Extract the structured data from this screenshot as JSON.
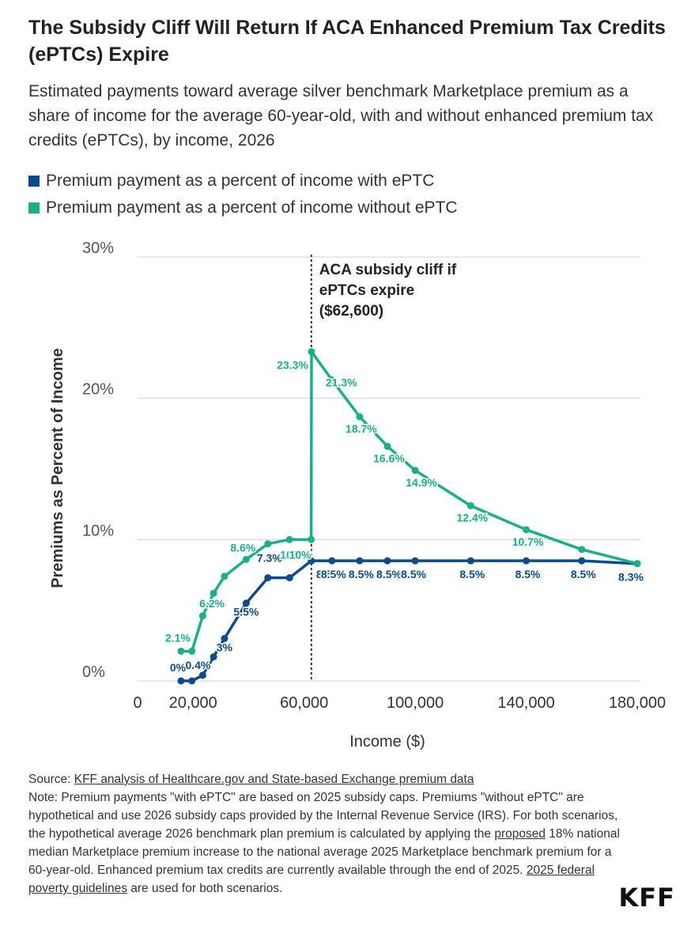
{
  "header": {
    "title": "The Subsidy Cliff Will Return If ACA Enhanced Premium Tax Credits (ePTCs) Expire",
    "subtitle": "Estimated payments toward average silver benchmark Marketplace premium as a share of income for the average 60-year-old, with and without enhanced premium tax credits (ePTCs), by income, 2026"
  },
  "legend": {
    "with": "Premium payment as a percent of income with ePTC",
    "without": "Premium payment as a percent of income without ePTC"
  },
  "colors": {
    "with": "#0b4a8b",
    "without": "#1ab087",
    "annotation": "#333333",
    "grid": "#d0d0d0"
  },
  "chart_data": {
    "type": "line",
    "xlabel": "Income ($)",
    "ylabel": "Premiums as Percent of Income",
    "xlim": [
      0,
      180000
    ],
    "ylim": [
      0,
      30
    ],
    "x_ticks": [
      {
        "value": 0,
        "label": "0"
      },
      {
        "value": 20000,
        "label": "20,000"
      },
      {
        "value": 60000,
        "label": "60,000"
      },
      {
        "value": 100000,
        "label": "100,000"
      },
      {
        "value": 140000,
        "label": "140,000"
      },
      {
        "value": 180000,
        "label": "180,000"
      }
    ],
    "y_ticks": [
      {
        "value": 0,
        "label": "0%"
      },
      {
        "value": 10,
        "label": "10%"
      },
      {
        "value": 20,
        "label": "20%"
      },
      {
        "value": 30,
        "label": "30%"
      }
    ],
    "annotation": {
      "x": 62600,
      "lines": [
        "ACA subsidy cliff if",
        "ePTCs expire",
        "($62,600)"
      ]
    },
    "series": [
      {
        "name": "Premium payment as a percent of income with ePTC",
        "key": "with",
        "points": [
          {
            "x": 15650,
            "y": 0,
            "label": "0%"
          },
          {
            "x": 19560,
            "y": 0
          },
          {
            "x": 23470,
            "y": 0.4,
            "label": "0.4%"
          },
          {
            "x": 27380,
            "y": 1.7
          },
          {
            "x": 31300,
            "y": 3,
            "label": "3%"
          },
          {
            "x": 39120,
            "y": 5.5,
            "label": "5.5%"
          },
          {
            "x": 46940,
            "y": 7.3,
            "label": "7.3%"
          },
          {
            "x": 54760,
            "y": 7.3
          },
          {
            "x": 62600,
            "y": 8.5,
            "label": "8.5%"
          },
          {
            "x": 70000,
            "y": 8.5,
            "label": "8.5%"
          },
          {
            "x": 80000,
            "y": 8.5,
            "label": "8.5%"
          },
          {
            "x": 90000,
            "y": 8.5,
            "label": "8.5%"
          },
          {
            "x": 100000,
            "y": 8.5,
            "label": "8.5%"
          },
          {
            "x": 120000,
            "y": 8.5,
            "label": "8.5%"
          },
          {
            "x": 140000,
            "y": 8.5,
            "label": "8.5%"
          },
          {
            "x": 160000,
            "y": 8.5,
            "label": "8.5%"
          },
          {
            "x": 180000,
            "y": 8.3,
            "label": "8.3%"
          }
        ]
      },
      {
        "name": "Premium payment as a percent of income without ePTC",
        "key": "without",
        "points": [
          {
            "x": 15650,
            "y": 2.1,
            "label": "2.1%"
          },
          {
            "x": 19560,
            "y": 2.1
          },
          {
            "x": 23470,
            "y": 4.6
          },
          {
            "x": 27380,
            "y": 6.2,
            "label": "6.2%"
          },
          {
            "x": 31300,
            "y": 7.4
          },
          {
            "x": 39120,
            "y": 8.6,
            "label": "8.6%"
          },
          {
            "x": 46940,
            "y": 9.7
          },
          {
            "x": 54760,
            "y": 10,
            "label": "10%"
          },
          {
            "x": 62550,
            "y": 10,
            "label": "10%"
          },
          {
            "x": 62650,
            "y": 23.3,
            "label": "23.3%"
          },
          {
            "x": 70000,
            "y": 21.3,
            "label": "21.3%"
          },
          {
            "x": 80000,
            "y": 18.7,
            "label": "18.7%"
          },
          {
            "x": 90000,
            "y": 16.6,
            "label": "16.6%"
          },
          {
            "x": 100000,
            "y": 14.9,
            "label": "14.9%"
          },
          {
            "x": 120000,
            "y": 12.4,
            "label": "12.4%"
          },
          {
            "x": 140000,
            "y": 10.7,
            "label": "10.7%"
          },
          {
            "x": 160000,
            "y": 9.3
          },
          {
            "x": 180000,
            "y": 8.3
          }
        ]
      }
    ]
  },
  "footer": {
    "source_prefix": "Source: ",
    "source_link": "KFF analysis of Healthcare.gov and State-based Exchange premium data",
    "note_1": "Note: Premium payments \"with ePTC\" are based on 2025 subsidy caps. Premiums \"without ePTC\" are hypothetical and use 2026 subsidy caps provided by the Internal Revenue Service (IRS). For both scenarios, the hypothetical average 2026 benchmark plan premium is calculated by applying the ",
    "note_link_1": "proposed",
    "note_2": " 18% national median Marketplace premium increase to the national average 2025 Marketplace benchmark premium for a 60-year-old. Enhanced premium tax credits are currently available through the end of 2025. ",
    "note_link_2": "2025 federal poverty guidelines",
    "note_3": " are used for both scenarios.",
    "logo": "KFF"
  }
}
